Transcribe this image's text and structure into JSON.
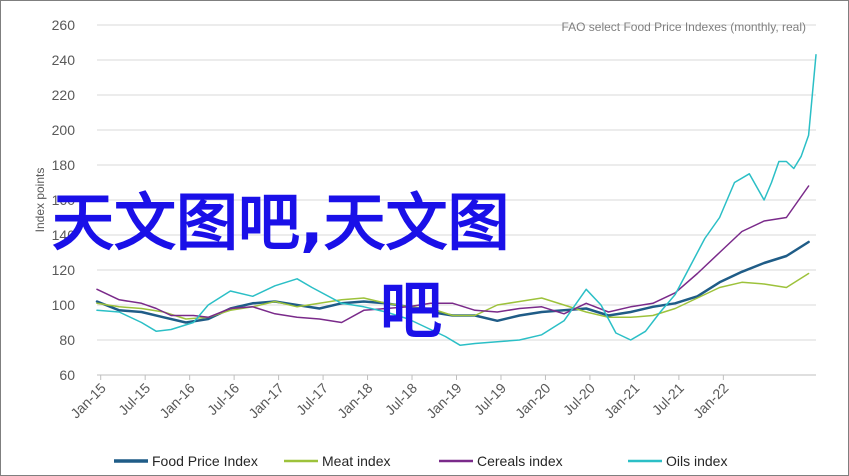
{
  "chart_data": {
    "type": "line",
    "title": "",
    "source_note": "FAO select Food Price Indexes (monthly, real)",
    "ylabel": "Index points",
    "xlabel": "",
    "ylim": [
      60,
      260
    ],
    "y_ticks": [
      60,
      80,
      100,
      120,
      140,
      160,
      180,
      200,
      220,
      240,
      260
    ],
    "x_ticks": [
      "Jan-15",
      "Jul-15",
      "Jan-16",
      "Jul-16",
      "Jan-17",
      "Jul-17",
      "Jan-18",
      "Jul-18",
      "Jan-19",
      "Jul-19",
      "Jan-20",
      "Jul-20",
      "Jan-21",
      "Jul-21",
      "Jan-22"
    ],
    "legend_position": "bottom",
    "grid": "horizontal",
    "overlay_text_line1": "天文图吧,天文图",
    "overlay_text_line2": "吧",
    "series": [
      {
        "name": "Food Price Index",
        "color": "#1f5c87",
        "width": 2.5,
        "points": [
          [
            0,
            102
          ],
          [
            3,
            97
          ],
          [
            6,
            96
          ],
          [
            9,
            93
          ],
          [
            12,
            90
          ],
          [
            15,
            92
          ],
          [
            18,
            98
          ],
          [
            21,
            101
          ],
          [
            24,
            102
          ],
          [
            27,
            100
          ],
          [
            30,
            98
          ],
          [
            33,
            101
          ],
          [
            36,
            102
          ],
          [
            39,
            101
          ],
          [
            42,
            99
          ],
          [
            45,
            96
          ],
          [
            48,
            94
          ],
          [
            51,
            94
          ],
          [
            54,
            91
          ],
          [
            57,
            94
          ],
          [
            60,
            96
          ],
          [
            63,
            97
          ],
          [
            66,
            98
          ],
          [
            69,
            94
          ],
          [
            72,
            96
          ],
          [
            75,
            99
          ],
          [
            78,
            101
          ],
          [
            81,
            105
          ],
          [
            84,
            113
          ],
          [
            87,
            119
          ],
          [
            90,
            124
          ],
          [
            93,
            128
          ],
          [
            96,
            136
          ]
        ]
      },
      {
        "name": "Meat index",
        "color": "#9dc23b",
        "width": 1.5,
        "points": [
          [
            0,
            101
          ],
          [
            3,
            99
          ],
          [
            6,
            98
          ],
          [
            9,
            96
          ],
          [
            12,
            92
          ],
          [
            15,
            93
          ],
          [
            18,
            97
          ],
          [
            21,
            99
          ],
          [
            24,
            102
          ],
          [
            27,
            99
          ],
          [
            30,
            101
          ],
          [
            33,
            103
          ],
          [
            36,
            104
          ],
          [
            39,
            101
          ],
          [
            42,
            99
          ],
          [
            45,
            98
          ],
          [
            48,
            94
          ],
          [
            51,
            94
          ],
          [
            54,
            100
          ],
          [
            57,
            102
          ],
          [
            60,
            104
          ],
          [
            63,
            100
          ],
          [
            66,
            96
          ],
          [
            69,
            93
          ],
          [
            72,
            93
          ],
          [
            75,
            94
          ],
          [
            78,
            98
          ],
          [
            81,
            104
          ],
          [
            84,
            110
          ],
          [
            87,
            113
          ],
          [
            90,
            112
          ],
          [
            93,
            110
          ],
          [
            96,
            118
          ]
        ]
      },
      {
        "name": "Cereals index",
        "color": "#7a2a8a",
        "width": 1.5,
        "points": [
          [
            0,
            109
          ],
          [
            3,
            103
          ],
          [
            6,
            101
          ],
          [
            8,
            98
          ],
          [
            10,
            94
          ],
          [
            13,
            94
          ],
          [
            15,
            93
          ],
          [
            18,
            98
          ],
          [
            21,
            99
          ],
          [
            24,
            95
          ],
          [
            27,
            93
          ],
          [
            30,
            92
          ],
          [
            33,
            90
          ],
          [
            36,
            97
          ],
          [
            39,
            98
          ],
          [
            42,
            99
          ],
          [
            45,
            101
          ],
          [
            48,
            101
          ],
          [
            51,
            97
          ],
          [
            54,
            96
          ],
          [
            57,
            98
          ],
          [
            60,
            99
          ],
          [
            63,
            95
          ],
          [
            66,
            101
          ],
          [
            69,
            96
          ],
          [
            72,
            99
          ],
          [
            75,
            101
          ],
          [
            78,
            107
          ],
          [
            81,
            118
          ],
          [
            84,
            130
          ],
          [
            87,
            142
          ],
          [
            90,
            148
          ],
          [
            93,
            150
          ],
          [
            96,
            168
          ]
        ]
      },
      {
        "name": "Oils index",
        "color": "#2bbfc6",
        "width": 1.5,
        "points": [
          [
            0,
            97
          ],
          [
            3,
            96
          ],
          [
            6,
            90
          ],
          [
            8,
            85
          ],
          [
            10,
            86
          ],
          [
            13,
            90
          ],
          [
            15,
            100
          ],
          [
            18,
            108
          ],
          [
            21,
            105
          ],
          [
            24,
            111
          ],
          [
            27,
            115
          ],
          [
            29,
            110
          ],
          [
            33,
            101
          ],
          [
            36,
            99
          ],
          [
            39,
            96
          ],
          [
            42,
            92
          ],
          [
            45,
            86
          ],
          [
            47,
            82
          ],
          [
            49,
            77
          ],
          [
            51,
            78
          ],
          [
            54,
            79
          ],
          [
            57,
            80
          ],
          [
            60,
            83
          ],
          [
            63,
            91
          ],
          [
            66,
            109
          ],
          [
            68,
            100
          ],
          [
            70,
            84
          ],
          [
            72,
            80
          ],
          [
            74,
            85
          ],
          [
            76,
            96
          ],
          [
            78,
            106
          ],
          [
            80,
            122
          ],
          [
            82,
            138
          ],
          [
            84,
            150
          ],
          [
            86,
            170
          ],
          [
            88,
            175
          ],
          [
            90,
            160
          ],
          [
            91,
            170
          ],
          [
            92,
            182
          ],
          [
            93,
            182
          ],
          [
            94,
            178
          ],
          [
            95,
            185
          ],
          [
            96,
            197
          ],
          [
            97,
            243
          ]
        ]
      }
    ]
  }
}
